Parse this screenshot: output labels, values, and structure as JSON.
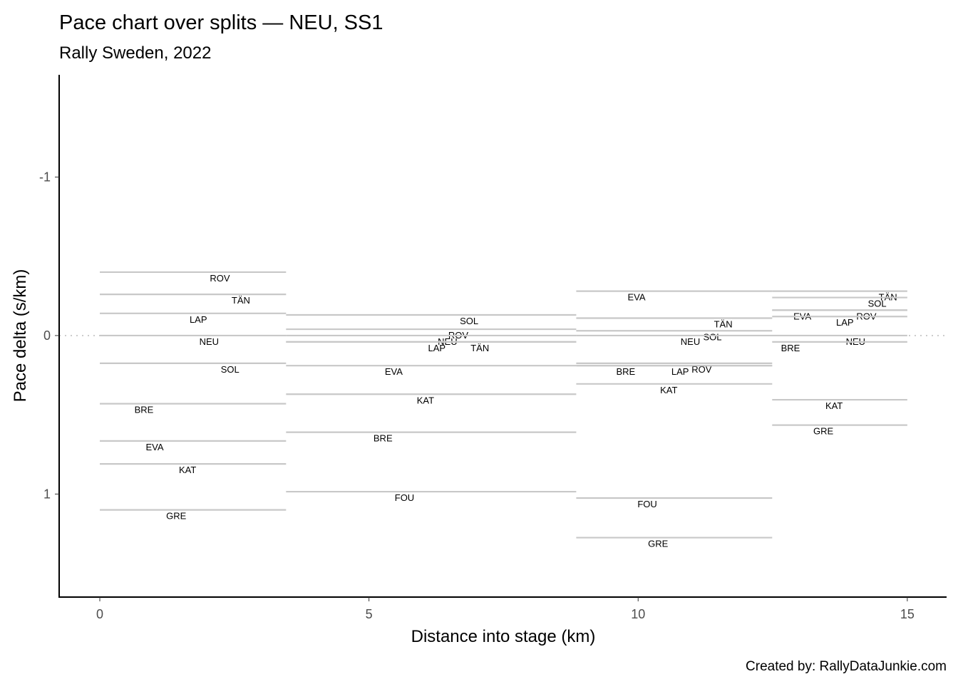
{
  "chart_data": {
    "type": "line",
    "title": "Pace chart over splits — NEU, SS1",
    "subtitle": "Rally Sweden, 2022",
    "xlabel": "Distance into stage (km)",
    "ylabel": "Pace delta (s/km)",
    "caption": "Created by: RallyDataJunkie.com",
    "xlim": [
      -0.755,
      15.73
    ],
    "ylim": [
      -1.645,
      1.65
    ],
    "y_reversed": true,
    "xticks": [
      {
        "v": 0,
        "label": "0"
      },
      {
        "v": 5,
        "label": "5"
      },
      {
        "v": 10,
        "label": "10"
      },
      {
        "v": 15,
        "label": "15"
      }
    ],
    "yticks": [
      {
        "v": -1,
        "label": "-1"
      },
      {
        "v": 0,
        "label": "0"
      },
      {
        "v": 1,
        "label": "1"
      }
    ],
    "reference_line": 0,
    "grid": false,
    "splits": [
      {
        "start": 0,
        "end": 3.46,
        "drivers": [
          {
            "code": "ROV",
            "pace": -0.4,
            "label_x": 2.23
          },
          {
            "code": "TÄN",
            "pace": -0.26,
            "label_x": 2.62
          },
          {
            "code": "LAP",
            "pace": -0.14,
            "label_x": 1.83
          },
          {
            "code": "NEU",
            "pace": 0,
            "label_x": 2.03
          },
          {
            "code": "SOL",
            "pace": 0.175,
            "label_x": 2.42
          },
          {
            "code": "BRE",
            "pace": 0.43,
            "label_x": 0.82
          },
          {
            "code": "EVA",
            "pace": 0.665,
            "label_x": 1.02
          },
          {
            "code": "KAT",
            "pace": 0.81,
            "label_x": 1.63
          },
          {
            "code": "GRE",
            "pace": 1.1,
            "label_x": 1.42
          }
        ]
      },
      {
        "start": 3.46,
        "end": 8.85,
        "drivers": [
          {
            "code": "SOL",
            "pace": -0.13,
            "label_x": 6.86
          },
          {
            "code": "ROV",
            "pace": -0.04,
            "label_x": 6.66
          },
          {
            "code": "NEU",
            "pace": 0,
            "label_x": 6.46
          },
          {
            "code": "LAP",
            "pace": 0.04,
            "label_x": 6.26
          },
          {
            "code": "TÄN",
            "pace": 0.04,
            "label_x": 7.06
          },
          {
            "code": "EVA",
            "pace": 0.19,
            "label_x": 5.46
          },
          {
            "code": "KAT",
            "pace": 0.37,
            "label_x": 6.05
          },
          {
            "code": "BRE",
            "pace": 0.61,
            "label_x": 5.26
          },
          {
            "code": "FOU",
            "pace": 0.985,
            "label_x": 5.66
          }
        ]
      },
      {
        "start": 8.85,
        "end": 12.49,
        "drivers": [
          {
            "code": "EVA",
            "pace": -0.28,
            "label_x": 9.97
          },
          {
            "code": "TÄN",
            "pace": -0.11,
            "label_x": 11.58
          },
          {
            "code": "SOL",
            "pace": -0.03,
            "label_x": 11.38
          },
          {
            "code": "NEU",
            "pace": 0,
            "label_x": 10.97
          },
          {
            "code": "ROV",
            "pace": 0.175,
            "label_x": 11.18
          },
          {
            "code": "LAP",
            "pace": 0.19,
            "label_x": 10.78
          },
          {
            "code": "BRE",
            "pace": 0.19,
            "label_x": 9.77
          },
          {
            "code": "KAT",
            "pace": 0.305,
            "label_x": 10.57
          },
          {
            "code": "FOU",
            "pace": 1.025,
            "label_x": 10.17
          },
          {
            "code": "GRE",
            "pace": 1.275,
            "label_x": 10.37
          }
        ]
      },
      {
        "start": 12.49,
        "end": 15,
        "drivers": [
          {
            "code": "TÄN",
            "pace": -0.28,
            "label_x": 14.64
          },
          {
            "code": "SOL",
            "pace": -0.24,
            "label_x": 14.44
          },
          {
            "code": "EVA",
            "pace": -0.16,
            "label_x": 13.05
          },
          {
            "code": "ROV",
            "pace": -0.16,
            "label_x": 14.24
          },
          {
            "code": "LAP",
            "pace": -0.12,
            "label_x": 13.84
          },
          {
            "code": "NEU",
            "pace": 0,
            "label_x": 14.04
          },
          {
            "code": "BRE",
            "pace": 0.04,
            "label_x": 12.83
          },
          {
            "code": "KAT",
            "pace": 0.405,
            "label_x": 13.64
          },
          {
            "code": "GRE",
            "pace": 0.565,
            "label_x": 13.44
          }
        ]
      }
    ],
    "colors": {
      "segment": "#c8c8c8",
      "reference": "#cccccc",
      "axis": "#000000"
    }
  }
}
